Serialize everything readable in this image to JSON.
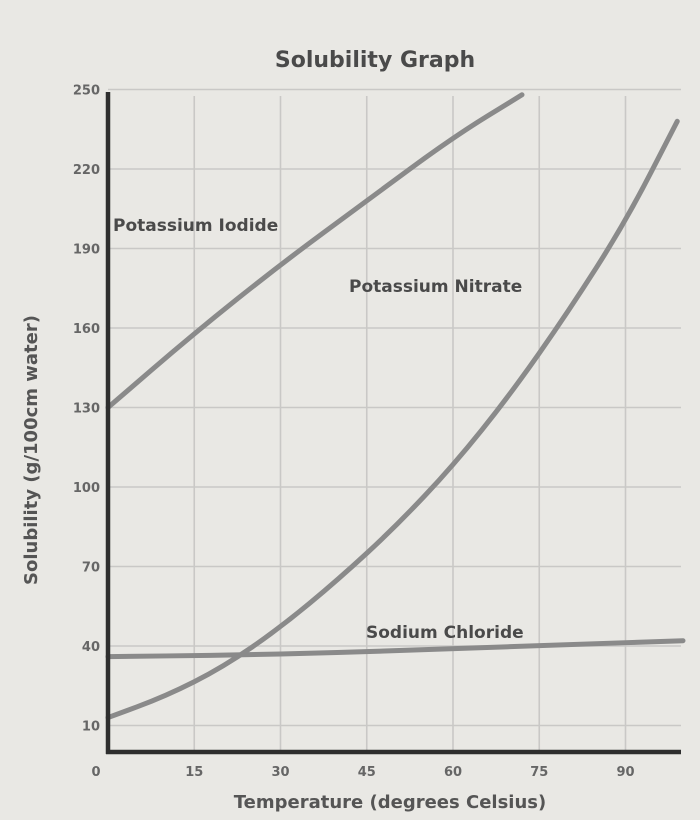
{
  "chart_data": {
    "type": "line",
    "title": "Solubility Graph",
    "xlabel": "Temperature (degrees Celsius)",
    "ylabel": "Solubility (g/100cm water)",
    "xlim": [
      0,
      100
    ],
    "ylim": [
      0,
      250
    ],
    "x_ticks": [
      "0",
      "15",
      "30",
      "45",
      "60",
      "75",
      "90"
    ],
    "x_tick_values": [
      0,
      15,
      30,
      45,
      60,
      75,
      90
    ],
    "y_ticks": [
      "10",
      "40",
      "70",
      "100",
      "130",
      "160",
      "190",
      "220",
      "250"
    ],
    "y_tick_values": [
      10,
      40,
      70,
      100,
      130,
      160,
      190,
      220,
      250
    ],
    "grid": true,
    "series": [
      {
        "name": "Potassium Iodide",
        "x": [
          0,
          15,
          30,
          45,
          60,
          72
        ],
        "y": [
          130,
          158,
          184,
          208,
          232,
          248
        ],
        "color": "#8a8a8a"
      },
      {
        "name": "Potassium Nitrate",
        "x": [
          0,
          10,
          20,
          30,
          40,
          50,
          60,
          70,
          80,
          90,
          99
        ],
        "y": [
          13,
          21,
          32,
          47,
          65,
          85,
          108,
          135,
          166,
          200,
          238
        ],
        "color": "#8a8a8a"
      },
      {
        "name": "Sodium Chloride",
        "x": [
          0,
          20,
          40,
          60,
          80,
          100
        ],
        "y": [
          36,
          36.5,
          37.5,
          39,
          40.5,
          42
        ],
        "color": "#8a8a8a"
      }
    ]
  }
}
